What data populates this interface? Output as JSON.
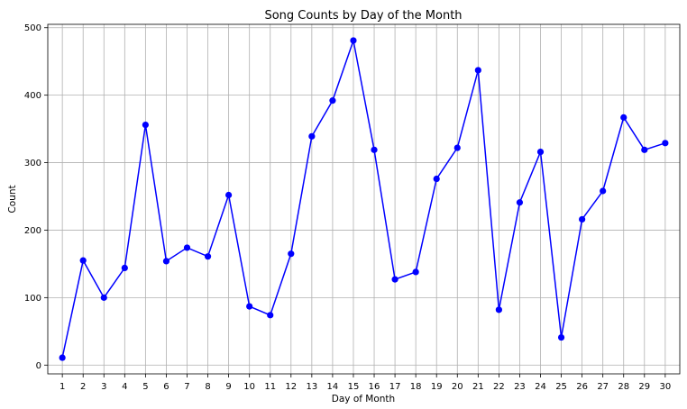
{
  "chart_data": {
    "type": "line",
    "title": "Song Counts by Day of the Month",
    "xlabel": "Day of Month",
    "ylabel": "Count",
    "x": [
      1,
      2,
      3,
      4,
      5,
      6,
      7,
      8,
      9,
      10,
      11,
      12,
      13,
      14,
      15,
      16,
      17,
      18,
      19,
      20,
      21,
      22,
      23,
      24,
      25,
      26,
      27,
      28,
      29,
      30
    ],
    "x_ticks": [
      "1",
      "2",
      "3",
      "4",
      "5",
      "6",
      "7",
      "8",
      "9",
      "10",
      "11",
      "12",
      "13",
      "14",
      "15",
      "16",
      "17",
      "18",
      "19",
      "20",
      "21",
      "22",
      "23",
      "24",
      "25",
      "26",
      "27",
      "28",
      "29",
      "30"
    ],
    "y_ticks": [
      "0",
      "100",
      "200",
      "300",
      "400",
      "500"
    ],
    "ylim": [
      -13,
      505
    ],
    "xlim": [
      0.3,
      30.7
    ],
    "grid": true,
    "series": [
      {
        "color": "#0000ff",
        "marker": "circle",
        "values": [
          11,
          155,
          100,
          144,
          356,
          154,
          174,
          161,
          252,
          87,
          74,
          165,
          339,
          392,
          481,
          319,
          127,
          138,
          276,
          322,
          437,
          82,
          241,
          316,
          41,
          216,
          258,
          367,
          319,
          329
        ]
      }
    ]
  }
}
